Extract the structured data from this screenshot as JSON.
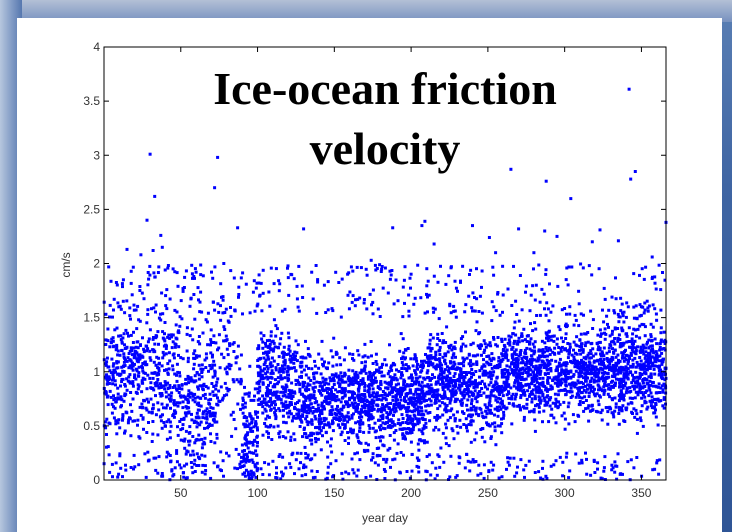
{
  "chart_data": {
    "type": "scatter",
    "title": [
      "Ice-ocean friction",
      "velocity"
    ],
    "xlabel": "year day",
    "ylabel": "cm/s",
    "xlim": [
      0,
      366
    ],
    "ylim": [
      0,
      4
    ],
    "xticks": [
      50,
      100,
      150,
      200,
      250,
      300,
      350
    ],
    "xtick_labels": [
      "50",
      "100",
      "150",
      "200",
      "250",
      "300",
      "350"
    ],
    "yticks": [
      0,
      0.5,
      1,
      1.5,
      2,
      2.5,
      3,
      3.5,
      4
    ],
    "ytick_labels": [
      "0",
      "0.5",
      "1",
      "1.5",
      "2",
      "2.5",
      "3",
      "3.5",
      "4"
    ],
    "grid": false,
    "marker_color": "#0000ff",
    "marker": "point",
    "points": [
      [
        30,
        3.01
      ],
      [
        74,
        2.98
      ],
      [
        72,
        2.7
      ],
      [
        33,
        2.62
      ],
      [
        342,
        3.61
      ],
      [
        265,
        2.87
      ],
      [
        346,
        2.85
      ],
      [
        288,
        2.76
      ],
      [
        343,
        2.78
      ],
      [
        304,
        2.6
      ],
      [
        366,
        2.38
      ],
      [
        209,
        2.39
      ],
      [
        207,
        2.35
      ],
      [
        240,
        2.35
      ],
      [
        270,
        2.32
      ],
      [
        323,
        2.31
      ],
      [
        28,
        2.4
      ],
      [
        37,
        2.26
      ],
      [
        38,
        2.15
      ],
      [
        32,
        2.12
      ],
      [
        87,
        2.33
      ],
      [
        24,
        2.08
      ],
      [
        15,
        2.13
      ],
      [
        45,
        1.95
      ],
      [
        60,
        1.92
      ],
      [
        78,
        2.0
      ],
      [
        120,
        1.87
      ],
      [
        130,
        2.32
      ],
      [
        188,
        2.33
      ],
      [
        215,
        2.18
      ],
      [
        226,
        1.96
      ],
      [
        255,
        2.1
      ],
      [
        287,
        2.3
      ],
      [
        295,
        2.25
      ],
      [
        318,
        2.2
      ],
      [
        335,
        2.21
      ],
      [
        357,
        2.06
      ],
      [
        280,
        2.1
      ],
      [
        251,
        2.24
      ],
      [
        162,
        1.93
      ],
      [
        174,
        2.03
      ],
      [
        196,
        1.97
      ]
    ],
    "density_bands": [
      {
        "x": [
          0,
          50
        ],
        "center": 0.95,
        "spread": 0.52,
        "count": 500
      },
      {
        "x": [
          50,
          75
        ],
        "center": 0.8,
        "spread": 0.6,
        "count": 260
      },
      {
        "x": [
          75,
          90
        ],
        "center": 0.95,
        "spread": 0.7,
        "count": 70
      },
      {
        "x": [
          90,
          100
        ],
        "center": 0.35,
        "spread": 0.45,
        "count": 120
      },
      {
        "x": [
          100,
          130
        ],
        "center": 0.9,
        "spread": 0.45,
        "count": 380
      },
      {
        "x": [
          130,
          210
        ],
        "center": 0.75,
        "spread": 0.38,
        "count": 1100
      },
      {
        "x": [
          210,
          260
        ],
        "center": 0.9,
        "spread": 0.42,
        "count": 650
      },
      {
        "x": [
          260,
          320
        ],
        "center": 1.0,
        "spread": 0.38,
        "count": 820
      },
      {
        "x": [
          320,
          366
        ],
        "center": 1.02,
        "spread": 0.4,
        "count": 650
      }
    ],
    "sparse_bands": [
      {
        "x": [
          0,
          366
        ],
        "low": 1.5,
        "high": 2.0,
        "count": 360
      },
      {
        "x": [
          0,
          366
        ],
        "low": 0.0,
        "high": 0.25,
        "count": 300
      }
    ]
  }
}
